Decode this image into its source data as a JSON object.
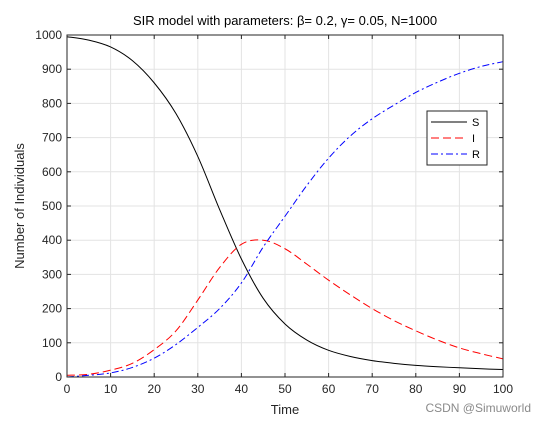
{
  "watermark": "CSDN @Simuworld",
  "chart_data": {
    "type": "line",
    "title": "SIR model with parameters: β= 0.2, γ= 0.05, N=1000",
    "xlabel": "Time",
    "ylabel": "Number of Individuals",
    "xlim": [
      0,
      100
    ],
    "ylim": [
      0,
      1000
    ],
    "xticks": [
      0,
      10,
      20,
      30,
      40,
      50,
      60,
      70,
      80,
      90,
      100
    ],
    "yticks": [
      0,
      100,
      200,
      300,
      400,
      500,
      600,
      700,
      800,
      900,
      1000
    ],
    "grid": true,
    "legend_position": "top-right",
    "x": [
      0,
      5,
      10,
      15,
      20,
      25,
      30,
      35,
      40,
      45,
      50,
      55,
      60,
      65,
      70,
      75,
      80,
      85,
      90,
      95,
      100
    ],
    "series": [
      {
        "name": "S",
        "color": "#000000",
        "dash": "solid",
        "values": [
          995,
          985,
          965,
          925,
          860,
          770,
          645,
          490,
          345,
          230,
          155,
          108,
          78,
          60,
          48,
          40,
          34,
          30,
          27,
          24,
          22
        ]
      },
      {
        "name": "I",
        "color": "#ff0000",
        "dash": "dashed",
        "values": [
          5,
          8,
          20,
          40,
          80,
          135,
          225,
          320,
          388,
          400,
          375,
          330,
          283,
          240,
          200,
          165,
          135,
          108,
          85,
          68,
          53
        ]
      },
      {
        "name": "R",
        "color": "#0000ff",
        "dash": "dashdot",
        "values": [
          0,
          5,
          12,
          28,
          55,
          95,
          145,
          200,
          275,
          380,
          470,
          560,
          640,
          705,
          755,
          795,
          832,
          862,
          888,
          908,
          922
        ]
      }
    ]
  }
}
